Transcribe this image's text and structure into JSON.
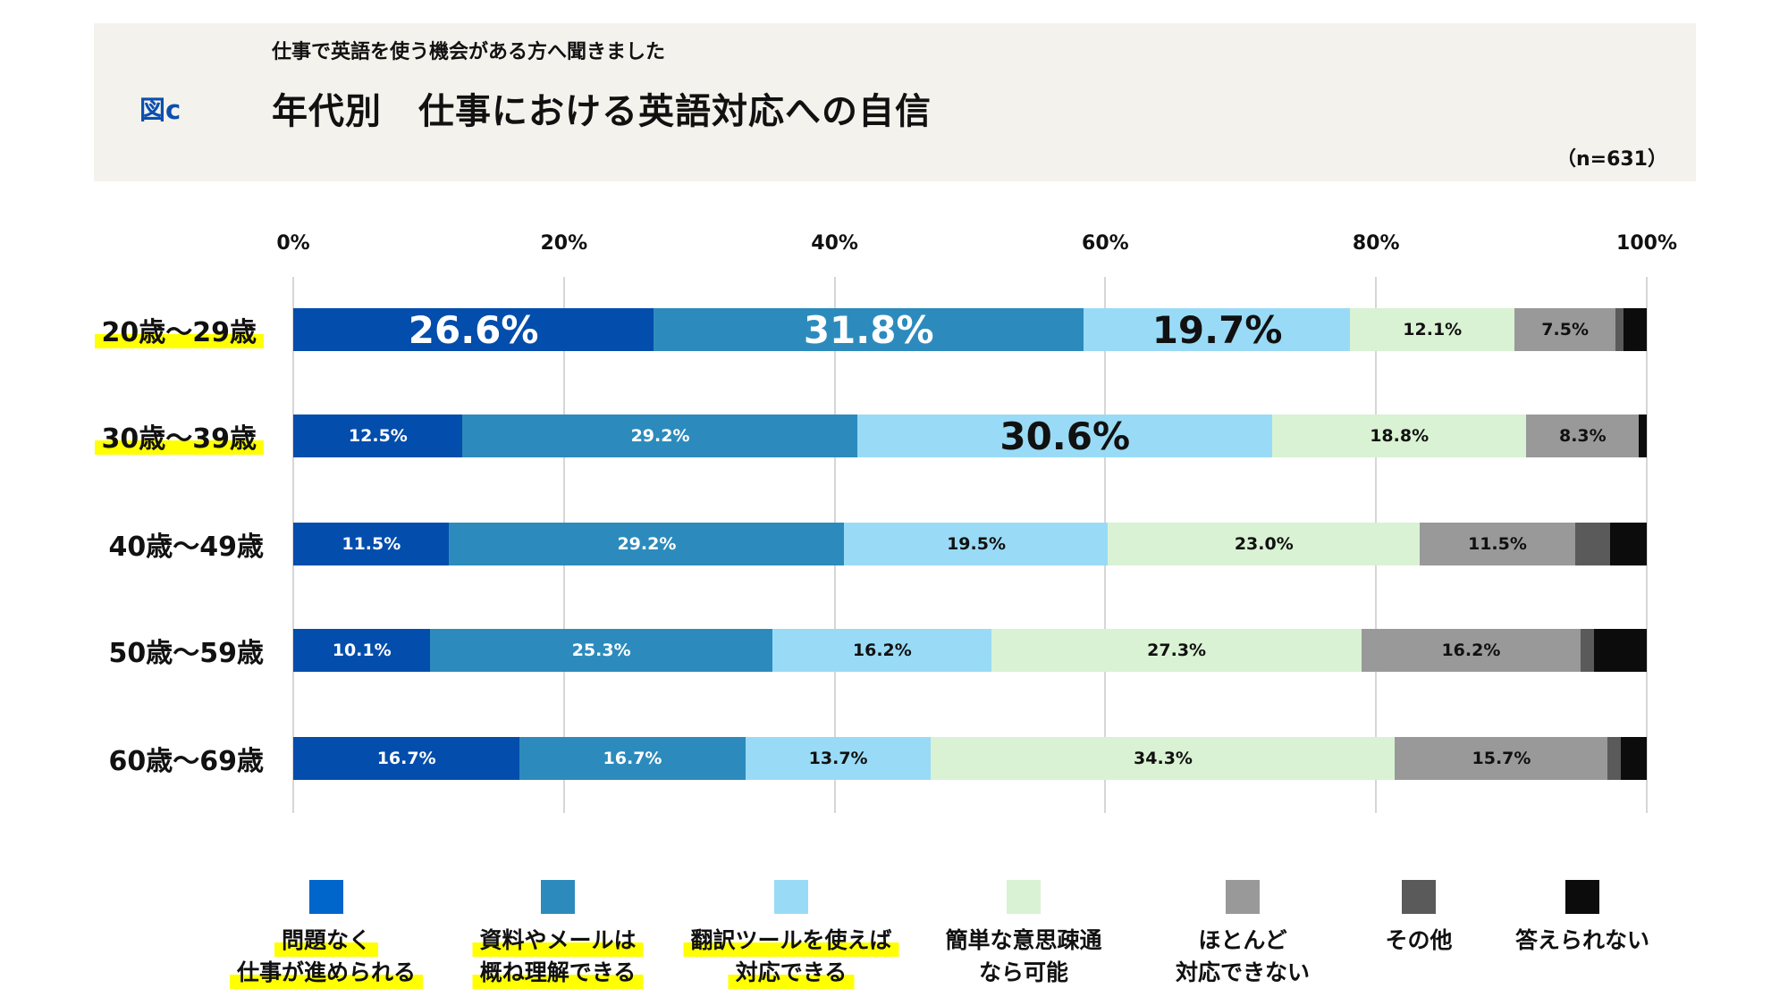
{
  "header": {
    "figure_label": "図c",
    "subtitle": "仕事で英語を使う機会がある方へ聞きました",
    "title": "年代別　仕事における英語対応への自信",
    "sample": "（n=631）"
  },
  "chart_data": {
    "type": "bar",
    "orientation": "horizontal",
    "stacked": true,
    "title": "年代別　仕事における英語対応への自信",
    "xlim": [
      0,
      100
    ],
    "x_ticks": [
      "0%",
      "20%",
      "40%",
      "60%",
      "80%",
      "100%"
    ],
    "grid": true,
    "legend_placement": "bottom",
    "categories": [
      "20歳～29歳",
      "30歳～39歳",
      "40歳～49歳",
      "50歳～59歳",
      "60歳～69歳"
    ],
    "highlighted_categories": [
      true,
      true,
      false,
      false,
      false
    ],
    "series": [
      {
        "name": "問題なく\n仕事が進められる",
        "color": "#034dac",
        "legend_color": "#0066cc",
        "text_color": "#ffffff",
        "highlighted": true,
        "values": [
          26.6,
          12.5,
          11.5,
          10.1,
          16.7
        ],
        "labels": [
          "26.6%",
          "12.5%",
          "11.5%",
          "10.1%",
          "16.7%"
        ],
        "large": [
          true,
          false,
          false,
          false,
          false
        ]
      },
      {
        "name": "資料やメールは\n概ね理解できる",
        "color": "#2c8bbc",
        "legend_color": "#2c8bbc",
        "text_color": "#ffffff",
        "highlighted": true,
        "values": [
          31.8,
          29.2,
          29.2,
          25.3,
          16.7
        ],
        "labels": [
          "31.8%",
          "29.2%",
          "29.2%",
          "25.3%",
          "16.7%"
        ],
        "large": [
          true,
          false,
          false,
          false,
          false
        ]
      },
      {
        "name": "翻訳ツールを使えば\n対応できる",
        "color": "#99dbf6",
        "legend_color": "#99dbf6",
        "text_color": "#111111",
        "highlighted": true,
        "values": [
          19.7,
          30.6,
          19.5,
          16.2,
          13.7
        ],
        "labels": [
          "19.7%",
          "30.6%",
          "19.5%",
          "16.2%",
          "13.7%"
        ],
        "large": [
          true,
          true,
          false,
          false,
          false
        ]
      },
      {
        "name": "簡単な意思疎通\nなら可能",
        "color": "#d9f2d3",
        "legend_color": "#d9f2d3",
        "text_color": "#111111",
        "highlighted": false,
        "values": [
          12.1,
          18.8,
          23.0,
          27.3,
          34.3
        ],
        "labels": [
          "12.1%",
          "18.8%",
          "23.0%",
          "27.3%",
          "34.3%"
        ],
        "large": [
          false,
          false,
          false,
          false,
          false
        ]
      },
      {
        "name": "ほとんど\n対応できない",
        "color": "#999999",
        "legend_color": "#999999",
        "text_color": "#111111",
        "highlighted": false,
        "values": [
          7.5,
          8.3,
          11.5,
          16.2,
          15.7
        ],
        "labels": [
          "7.5%",
          "8.3%",
          "11.5%",
          "16.2%",
          "15.7%"
        ],
        "large": [
          false,
          false,
          false,
          false,
          false
        ]
      },
      {
        "name": "その他",
        "color": "#5a5a5a",
        "legend_color": "#5a5a5a",
        "text_color": "#ffffff",
        "highlighted": false,
        "values": [
          0.6,
          0.0,
          2.6,
          1.0,
          1.0
        ],
        "labels": [
          "",
          "",
          "",
          "",
          ""
        ],
        "large": [
          false,
          false,
          false,
          false,
          false
        ]
      },
      {
        "name": "答えられない",
        "color": "#0c0c0c",
        "legend_color": "#0c0c0c",
        "text_color": "#ffffff",
        "highlighted": false,
        "values": [
          1.7,
          0.6,
          2.7,
          3.9,
          1.9
        ],
        "labels": [
          "",
          "",
          "",
          "",
          ""
        ],
        "large": [
          false,
          false,
          false,
          false,
          false
        ]
      }
    ]
  }
}
